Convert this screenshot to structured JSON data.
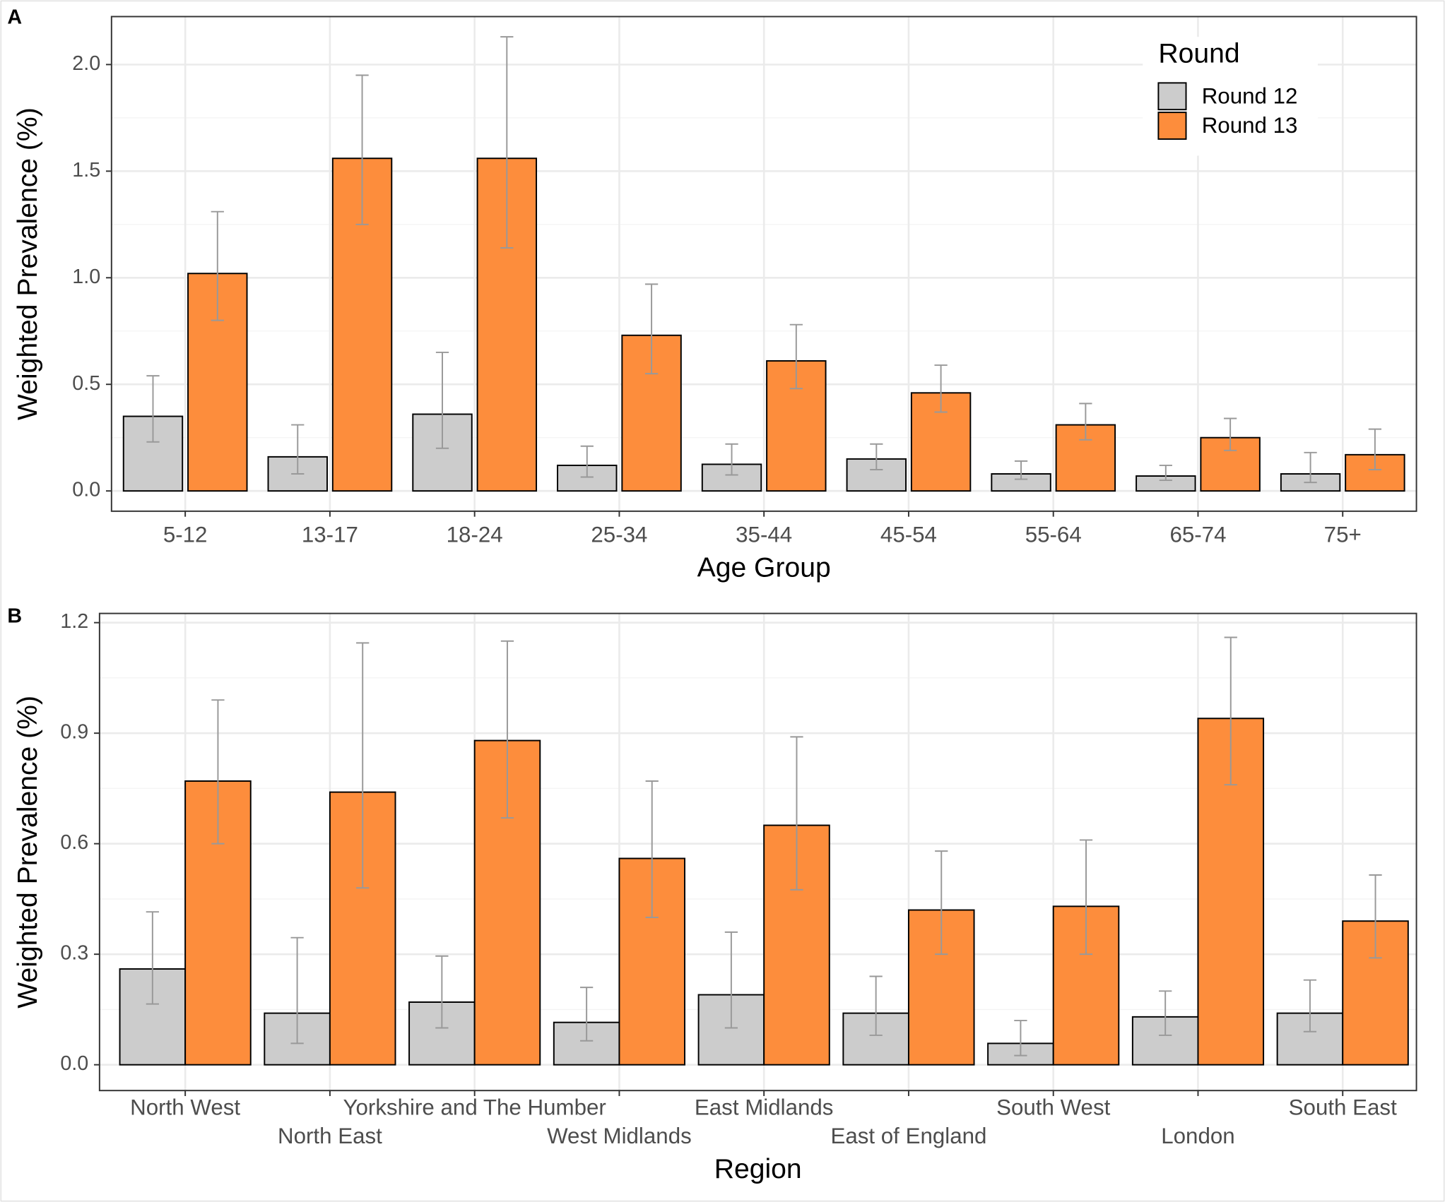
{
  "chart_data": [
    {
      "type": "bar",
      "panel_label": "A",
      "x_label": "Age Group",
      "y_label": "Weighted Prevalence (%)",
      "categories": [
        "5-12",
        "13-17",
        "18-24",
        "25-34",
        "35-44",
        "45-54",
        "55-64",
        "65-74",
        "75+"
      ],
      "series": [
        {
          "name": "Round 12",
          "color": "#cccccc",
          "values": [
            0.35,
            0.16,
            0.36,
            0.12,
            0.125,
            0.15,
            0.08,
            0.07,
            0.08
          ],
          "ci_lower": [
            0.23,
            0.08,
            0.2,
            0.065,
            0.075,
            0.1,
            0.055,
            0.05,
            0.04
          ],
          "ci_upper": [
            0.54,
            0.31,
            0.65,
            0.21,
            0.22,
            0.22,
            0.14,
            0.12,
            0.18
          ]
        },
        {
          "name": "Round 13",
          "color": "#fd8d3c",
          "values": [
            1.02,
            1.56,
            1.56,
            0.73,
            0.61,
            0.46,
            0.31,
            0.25,
            0.17
          ],
          "ci_lower": [
            0.8,
            1.25,
            1.14,
            0.55,
            0.48,
            0.37,
            0.24,
            0.19,
            0.1
          ],
          "ci_upper": [
            1.31,
            1.95,
            2.13,
            0.97,
            0.78,
            0.59,
            0.41,
            0.34,
            0.29
          ]
        }
      ],
      "ylim": [
        -0.095,
        2.225
      ],
      "yticks": [
        {
          "value": 0,
          "label": "0.0"
        },
        {
          "value": 0.5,
          "label": "0.5"
        },
        {
          "value": 1,
          "label": "1.0"
        },
        {
          "value": 1.5,
          "label": "1.5"
        },
        {
          "value": 2,
          "label": "2.0"
        }
      ],
      "grid": true,
      "legend": "top-right",
      "legend_title": "Round"
    },
    {
      "type": "bar",
      "panel_label": "B",
      "x_label": "Region",
      "y_label": "Weighted Prevalence (%)",
      "categories": [
        "North West",
        "North East",
        "Yorkshire and The Humber",
        "West Midlands",
        "East Midlands",
        "East of England",
        "South West",
        "London",
        "South East"
      ],
      "series": [
        {
          "name": "Round 12",
          "color": "#cccccc",
          "values": [
            0.26,
            0.14,
            0.17,
            0.115,
            0.19,
            0.14,
            0.058,
            0.13,
            0.14
          ],
          "ci_lower": [
            0.165,
            0.058,
            0.1,
            0.065,
            0.1,
            0.08,
            0.025,
            0.08,
            0.09
          ],
          "ci_upper": [
            0.415,
            0.345,
            0.295,
            0.21,
            0.36,
            0.24,
            0.12,
            0.2,
            0.23
          ]
        },
        {
          "name": "Round 13",
          "color": "#fd8d3c",
          "values": [
            0.77,
            0.74,
            0.88,
            0.56,
            0.65,
            0.42,
            0.43,
            0.94,
            0.39
          ],
          "ci_lower": [
            0.6,
            0.48,
            0.67,
            0.4,
            0.475,
            0.3,
            0.3,
            0.76,
            0.29
          ],
          "ci_upper": [
            0.99,
            1.145,
            1.15,
            0.77,
            0.89,
            0.58,
            0.61,
            1.16,
            0.515
          ]
        }
      ],
      "ylim": [
        -0.07,
        1.225
      ],
      "yticks": [
        {
          "value": 0,
          "label": "0.0"
        },
        {
          "value": 0.3,
          "label": "0.3"
        },
        {
          "value": 0.6,
          "label": "0.6"
        },
        {
          "value": 0.9,
          "label": "0.9"
        },
        {
          "value": 1.2,
          "label": "1.2"
        }
      ],
      "grid": true,
      "legend": "none"
    }
  ]
}
